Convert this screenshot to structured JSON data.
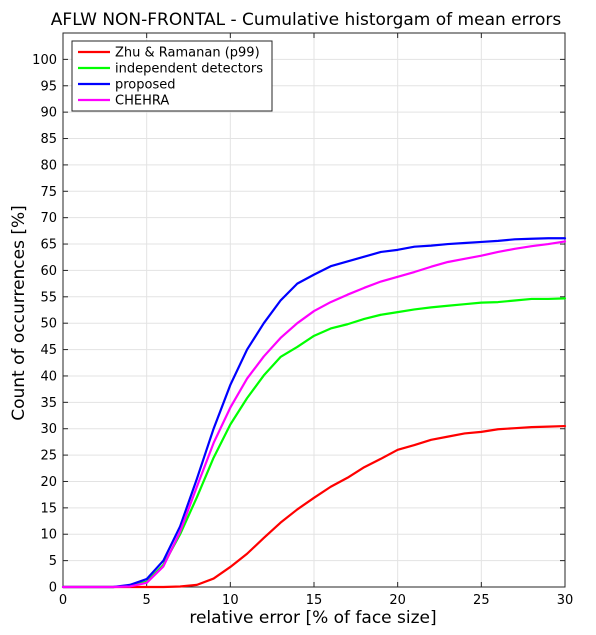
{
  "chart_data": {
    "type": "line",
    "title": "AFLW NON-FRONTAL - Cumulative historgam of mean errors",
    "xlabel": "relative error [% of face size]",
    "ylabel": "Count of occurrences [%]",
    "xlim": [
      0,
      30
    ],
    "ylim": [
      0,
      105
    ],
    "xticks": [
      0,
      5,
      10,
      15,
      20,
      25,
      30
    ],
    "yticks": [
      0,
      5,
      10,
      15,
      20,
      25,
      30,
      35,
      40,
      45,
      50,
      55,
      60,
      65,
      70,
      75,
      80,
      85,
      90,
      95,
      100
    ],
    "grid": true,
    "legend_position": "top-left",
    "x": [
      0,
      1,
      2,
      3,
      4,
      5,
      6,
      7,
      8,
      9,
      10,
      11,
      12,
      13,
      14,
      15,
      16,
      17,
      18,
      19,
      20,
      21,
      22,
      23,
      24,
      25,
      26,
      27,
      28,
      29,
      30
    ],
    "series": [
      {
        "name": "Zhu & Ramanan (p99)",
        "color": "#ff0000",
        "values": [
          0,
          0,
          0,
          0,
          0,
          0,
          0,
          0.1,
          0.4,
          1.6,
          3.8,
          6.3,
          9.3,
          12.2,
          14.7,
          16.9,
          19.0,
          20.7,
          22.7,
          24.3,
          26.0,
          26.9,
          27.9,
          28.5,
          29.1,
          29.4,
          29.9,
          30.1,
          30.3,
          30.4,
          30.5
        ]
      },
      {
        "name": "independent detectors",
        "color": "#00ff00",
        "values": [
          0,
          0,
          0,
          0,
          0.2,
          1.0,
          4.2,
          10.0,
          17.0,
          24.5,
          30.8,
          35.8,
          40.1,
          43.6,
          45.5,
          47.6,
          49.0,
          49.8,
          50.8,
          51.6,
          52.1,
          52.6,
          53.0,
          53.3,
          53.6,
          53.9,
          54.0,
          54.3,
          54.6,
          54.6,
          54.7
        ]
      },
      {
        "name": "proposed",
        "color": "#0000ff",
        "values": [
          0,
          0,
          0,
          0,
          0.4,
          1.5,
          5.0,
          11.5,
          20.5,
          30.0,
          38.3,
          45.0,
          50.0,
          54.3,
          57.5,
          59.2,
          60.8,
          61.7,
          62.6,
          63.5,
          63.9,
          64.5,
          64.7,
          65.0,
          65.2,
          65.4,
          65.6,
          65.9,
          66.0,
          66.1,
          66.1
        ]
      },
      {
        "name": "CHEHRA",
        "color": "#ff00ff",
        "values": [
          0,
          0,
          0,
          0,
          0.1,
          0.8,
          3.9,
          10.5,
          19.0,
          27.3,
          34.0,
          39.5,
          43.7,
          47.2,
          50.0,
          52.3,
          54.0,
          55.4,
          56.7,
          57.9,
          58.8,
          59.7,
          60.7,
          61.6,
          62.2,
          62.8,
          63.5,
          64.1,
          64.6,
          65.0,
          65.5
        ]
      }
    ]
  }
}
